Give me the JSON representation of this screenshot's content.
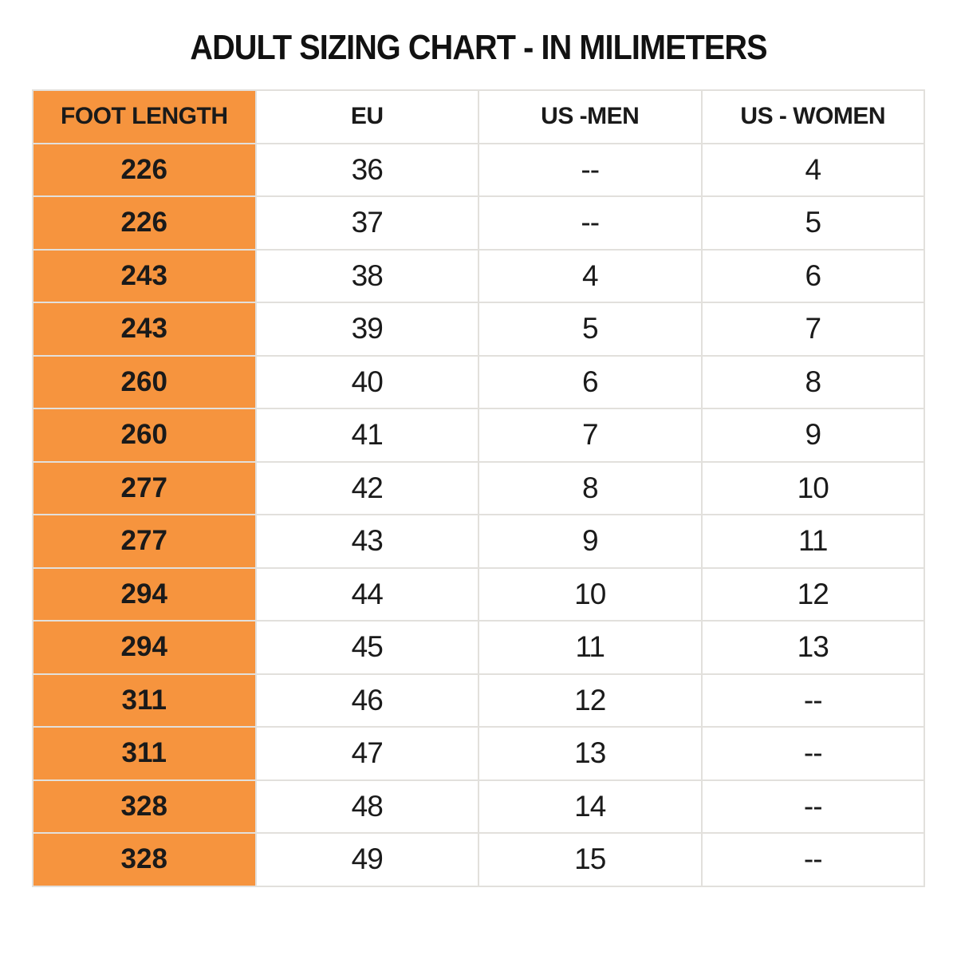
{
  "title": "ADULT SIZING CHART - IN MILIMETERS",
  "colors": {
    "accent_orange": "#f6943e",
    "grid_line": "#e2e0dc",
    "text": "#1a1a1a",
    "background": "#ffffff"
  },
  "chart_data": {
    "type": "table",
    "title": "ADULT SIZING CHART - IN MILIMETERS",
    "columns": [
      "FOOT LENGTH",
      "EU",
      "US -MEN",
      "US - WOMEN"
    ],
    "rows": [
      [
        "226",
        "36",
        "--",
        "4"
      ],
      [
        "226",
        "37",
        "--",
        "5"
      ],
      [
        "243",
        "38",
        "4",
        "6"
      ],
      [
        "243",
        "39",
        "5",
        "7"
      ],
      [
        "260",
        "40",
        "6",
        "8"
      ],
      [
        "260",
        "41",
        "7",
        "9"
      ],
      [
        "277",
        "42",
        "8",
        "10"
      ],
      [
        "277",
        "43",
        "9",
        "11"
      ],
      [
        "294",
        "44",
        "10",
        "12"
      ],
      [
        "294",
        "45",
        "11",
        "13"
      ],
      [
        "311",
        "46",
        "12",
        "--"
      ],
      [
        "311",
        "47",
        "13",
        "--"
      ],
      [
        "328",
        "48",
        "14",
        "--"
      ],
      [
        "328",
        "49",
        "15",
        "--"
      ]
    ],
    "layout": {
      "first_column_highlighted": true,
      "grid": true,
      "header_row": true
    }
  }
}
